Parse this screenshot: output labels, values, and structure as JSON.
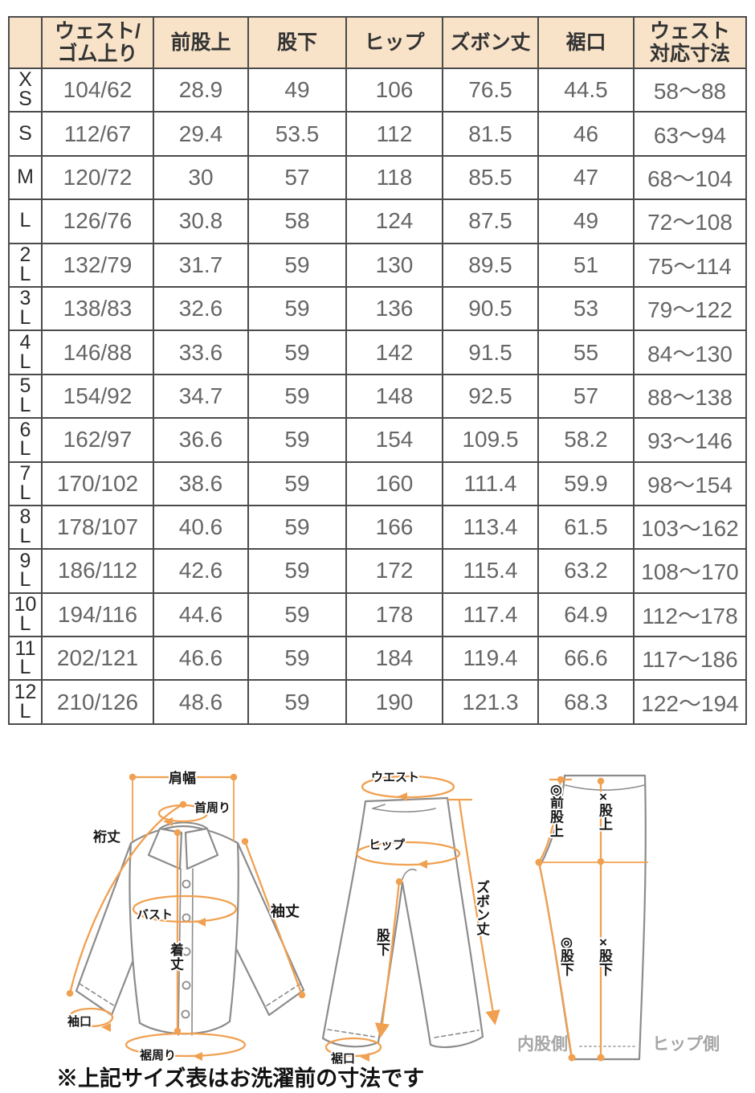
{
  "table": {
    "columns": [
      "",
      "ウェスト/\nゴム上り",
      "前股上",
      "股下",
      "ヒップ",
      "ズボン丈",
      "裾口",
      "ウェスト\n対応寸法"
    ],
    "rows": [
      [
        "X\nS",
        "104/62",
        "28.9",
        "49",
        "106",
        "76.5",
        "44.5",
        "58〜88"
      ],
      [
        "S",
        "112/67",
        "29.4",
        "53.5",
        "112",
        "81.5",
        "46",
        "63〜94"
      ],
      [
        "M",
        "120/72",
        "30",
        "57",
        "118",
        "85.5",
        "47",
        "68〜104"
      ],
      [
        "L",
        "126/76",
        "30.8",
        "58",
        "124",
        "87.5",
        "49",
        "72〜108"
      ],
      [
        "2\nL",
        "132/79",
        "31.7",
        "59",
        "130",
        "89.5",
        "51",
        "75〜114"
      ],
      [
        "3\nL",
        "138/83",
        "32.6",
        "59",
        "136",
        "90.5",
        "53",
        "79〜122"
      ],
      [
        "4\nL",
        "146/88",
        "33.6",
        "59",
        "142",
        "91.5",
        "55",
        "84〜130"
      ],
      [
        "5\nL",
        "154/92",
        "34.7",
        "59",
        "148",
        "92.5",
        "57",
        "88〜138"
      ],
      [
        "6\nL",
        "162/97",
        "36.6",
        "59",
        "154",
        "109.5",
        "58.2",
        "93〜146"
      ],
      [
        "7\nL",
        "170/102",
        "38.6",
        "59",
        "160",
        "111.4",
        "59.9",
        "98〜154"
      ],
      [
        "8\nL",
        "178/107",
        "40.6",
        "59",
        "166",
        "113.4",
        "61.5",
        "103〜162"
      ],
      [
        "9\nL",
        "186/112",
        "42.6",
        "59",
        "172",
        "115.4",
        "63.2",
        "108〜170"
      ],
      [
        "10\nL",
        "194/116",
        "44.6",
        "59",
        "178",
        "117.4",
        "64.9",
        "112〜178"
      ],
      [
        "11\nL",
        "202/121",
        "46.6",
        "59",
        "184",
        "119.4",
        "66.6",
        "117〜186"
      ],
      [
        "12\nL",
        "210/126",
        "48.6",
        "59",
        "190",
        "121.3",
        "68.3",
        "122〜194"
      ]
    ]
  },
  "diagrams": {
    "shirt": {
      "shoulder_width": "肩幅",
      "neck_around": "首周り",
      "sleeve_from_center": "裄丈",
      "bust": "バスト",
      "sleeve_length": "袖丈",
      "body_length": "着丈",
      "cuff_opening": "袖口",
      "hem_around": "裾周り"
    },
    "pants_front": {
      "waist": "ウエスト",
      "hip": "ヒップ",
      "pants_length": "ズボン丈",
      "inseam": "股下",
      "hem_opening": "裾口"
    },
    "pants_side": {
      "front_rise": "◎前股上",
      "rise": "×股上",
      "inseam_inner": "◎股下",
      "inseam_back": "×股下",
      "inner_thigh_side": "内股側",
      "hip_side": "ヒップ側"
    }
  },
  "footnote": "※上記サイズ表はお洗濯前の寸法です",
  "colors": {
    "accent_orange": "#F0A050",
    "header_bg": "#F8E3C9",
    "table_border": "#4B4B4B",
    "number_text": "#666666",
    "label_text": "#161616",
    "side_label_gray": "#A6A6A6"
  }
}
